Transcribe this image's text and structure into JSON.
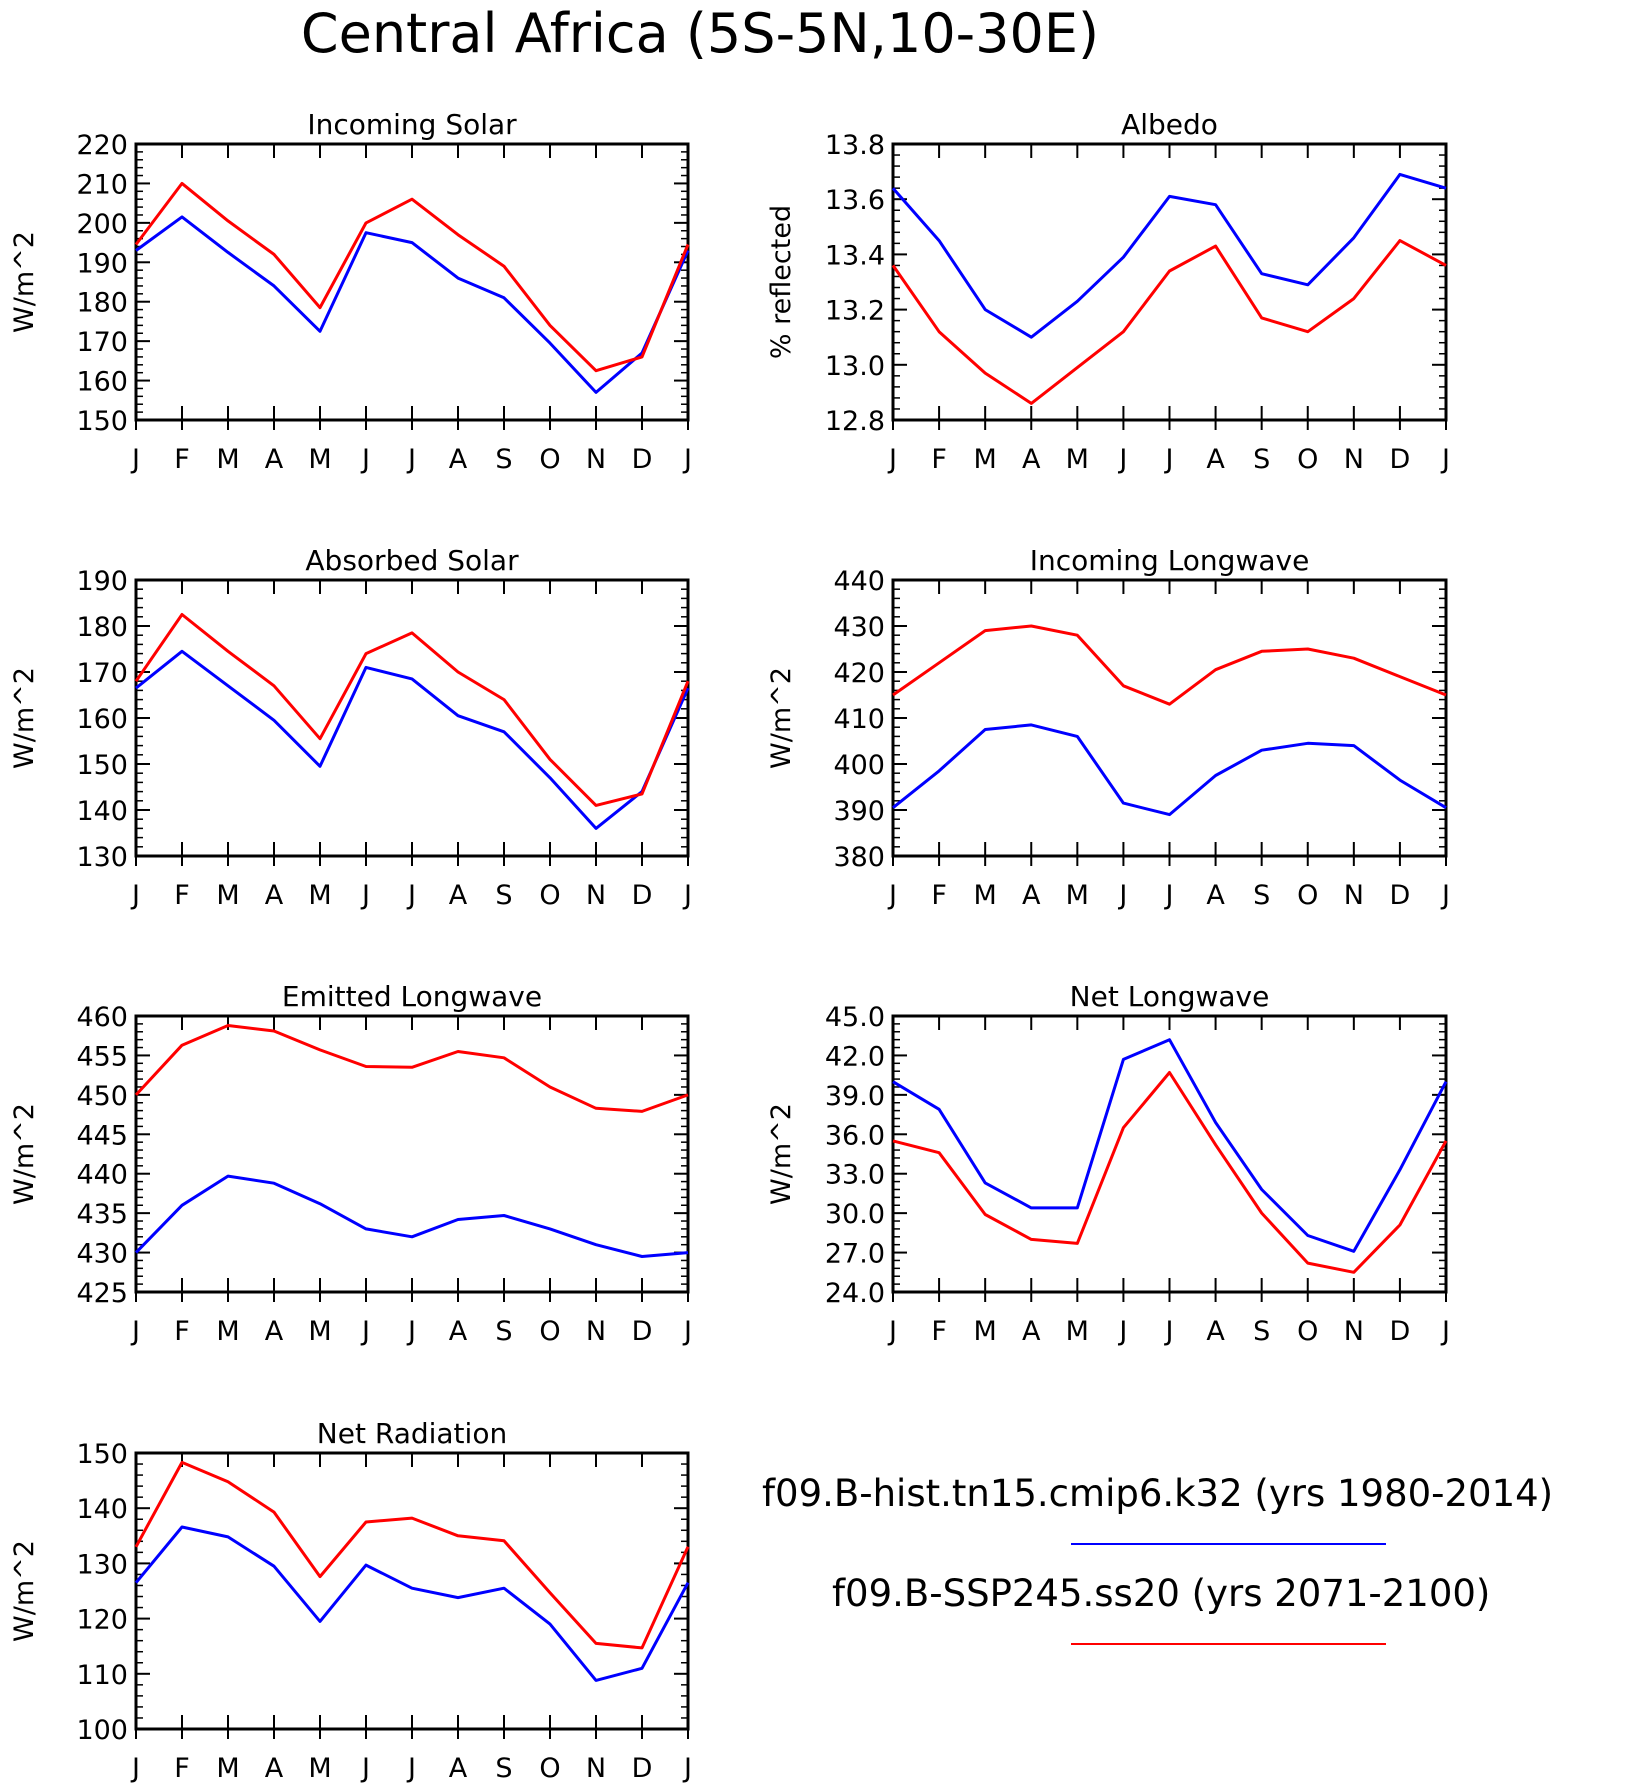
{
  "title": "Central Africa (5S-5N,10-30E)",
  "months": [
    "J",
    "F",
    "M",
    "A",
    "M",
    "J",
    "J",
    "A",
    "S",
    "O",
    "N",
    "D",
    "J"
  ],
  "legend": [
    {
      "label": "f09.B-hist.tn15.cmip6.k32 (yrs 1980-2014)",
      "color": "#0000ff"
    },
    {
      "label": "f09.B-SSP245.ss20 (yrs 2071-2100)",
      "color": "#ff0000"
    }
  ],
  "colors": {
    "hist": "#0000ff",
    "ssp": "#ff0000",
    "axis": "#000000"
  },
  "chart_data": [
    {
      "type": "line",
      "title": "Incoming Solar",
      "ylabel": "W/m^2",
      "ylim": [
        150,
        220
      ],
      "yticks": [
        150,
        160,
        170,
        180,
        190,
        200,
        210,
        220
      ],
      "ytick_labels": [
        "150",
        "160",
        "170",
        "180",
        "190",
        "200",
        "210",
        "220"
      ],
      "categories": [
        "J",
        "F",
        "M",
        "A",
        "M",
        "J",
        "J",
        "A",
        "S",
        "O",
        "N",
        "D",
        "J"
      ],
      "series": [
        {
          "name": "f09.B-hist.tn15.cmip6.k32 (yrs 1980-2014)",
          "color": "#0000ff",
          "values": [
            193,
            201.5,
            192.5,
            184,
            172.5,
            197.5,
            195,
            186,
            181,
            169.5,
            157,
            167,
            193
          ]
        },
        {
          "name": "f09.B-SSP245.ss20 (yrs 2071-2100)",
          "color": "#ff0000",
          "values": [
            194.5,
            210,
            200.5,
            192,
            178.5,
            200,
            206,
            197,
            189,
            174,
            162.5,
            166,
            194.5
          ]
        }
      ]
    },
    {
      "type": "line",
      "title": "Albedo",
      "ylabel": "% reflected",
      "ylim": [
        12.8,
        13.8
      ],
      "yticks": [
        12.8,
        13.0,
        13.2,
        13.4,
        13.6,
        13.8
      ],
      "ytick_labels": [
        "12.8",
        "13.0",
        "13.2",
        "13.4",
        "13.6",
        "13.8"
      ],
      "categories": [
        "J",
        "F",
        "M",
        "A",
        "M",
        "J",
        "J",
        "A",
        "S",
        "O",
        "N",
        "D",
        "J"
      ],
      "series": [
        {
          "name": "f09.B-hist.tn15.cmip6.k32 (yrs 1980-2014)",
          "color": "#0000ff",
          "values": [
            13.64,
            13.45,
            13.2,
            13.1,
            13.23,
            13.39,
            13.61,
            13.58,
            13.33,
            13.29,
            13.46,
            13.69,
            13.64
          ]
        },
        {
          "name": "f09.B-SSP245.ss20 (yrs 2071-2100)",
          "color": "#ff0000",
          "values": [
            13.36,
            13.12,
            12.97,
            12.86,
            12.99,
            13.12,
            13.34,
            13.43,
            13.17,
            13.12,
            13.24,
            13.45,
            13.36
          ]
        }
      ]
    },
    {
      "type": "line",
      "title": "Absorbed Solar",
      "ylabel": "W/m^2",
      "ylim": [
        130,
        190
      ],
      "yticks": [
        130,
        140,
        150,
        160,
        170,
        180,
        190
      ],
      "ytick_labels": [
        "130",
        "140",
        "150",
        "160",
        "170",
        "180",
        "190"
      ],
      "categories": [
        "J",
        "F",
        "M",
        "A",
        "M",
        "J",
        "J",
        "A",
        "S",
        "O",
        "N",
        "D",
        "J"
      ],
      "series": [
        {
          "name": "f09.B-hist.tn15.cmip6.k32 (yrs 1980-2014)",
          "color": "#0000ff",
          "values": [
            166.5,
            174.5,
            167,
            159.5,
            149.5,
            171,
            168.5,
            160.5,
            157,
            147,
            136,
            144,
            166.5
          ]
        },
        {
          "name": "f09.B-SSP245.ss20 (yrs 2071-2100)",
          "color": "#ff0000",
          "values": [
            168,
            182.5,
            174.5,
            167,
            155.5,
            174,
            178.5,
            170,
            164,
            151,
            141,
            143.5,
            168
          ]
        }
      ]
    },
    {
      "type": "line",
      "title": "Incoming Longwave",
      "ylabel": "W/m^2",
      "ylim": [
        380,
        440
      ],
      "yticks": [
        380,
        390,
        400,
        410,
        420,
        430,
        440
      ],
      "ytick_labels": [
        "380",
        "390",
        "400",
        "410",
        "420",
        "430",
        "440"
      ],
      "categories": [
        "J",
        "F",
        "M",
        "A",
        "M",
        "J",
        "J",
        "A",
        "S",
        "O",
        "N",
        "D",
        "J"
      ],
      "series": [
        {
          "name": "f09.B-hist.tn15.cmip6.k32 (yrs 1980-2014)",
          "color": "#0000ff",
          "values": [
            390.5,
            398.5,
            407.5,
            408.5,
            406,
            391.5,
            389,
            397.5,
            403,
            404.5,
            404,
            396.5,
            390.5
          ]
        },
        {
          "name": "f09.B-SSP245.ss20 (yrs 2071-2100)",
          "color": "#ff0000",
          "values": [
            415,
            422,
            429,
            430,
            428,
            417,
            413,
            420.5,
            424.5,
            425,
            423,
            419,
            415
          ]
        }
      ]
    },
    {
      "type": "line",
      "title": "Emitted Longwave",
      "ylabel": "W/m^2",
      "ylim": [
        425,
        460
      ],
      "yticks": [
        425,
        430,
        435,
        440,
        445,
        450,
        455,
        460
      ],
      "ytick_labels": [
        "425",
        "430",
        "435",
        "440",
        "445",
        "450",
        "455",
        "460"
      ],
      "categories": [
        "J",
        "F",
        "M",
        "A",
        "M",
        "J",
        "J",
        "A",
        "S",
        "O",
        "N",
        "D",
        "J"
      ],
      "series": [
        {
          "name": "f09.B-hist.tn15.cmip6.k32 (yrs 1980-2014)",
          "color": "#0000ff",
          "values": [
            430,
            436,
            439.7,
            438.8,
            436.2,
            433,
            432,
            434.2,
            434.7,
            433,
            431,
            429.5,
            430
          ]
        },
        {
          "name": "f09.B-SSP245.ss20 (yrs 2071-2100)",
          "color": "#ff0000",
          "values": [
            450,
            456.3,
            458.8,
            458.1,
            455.7,
            453.6,
            453.5,
            455.5,
            454.7,
            451,
            448.3,
            447.9,
            450
          ]
        }
      ]
    },
    {
      "type": "line",
      "title": "Net Longwave",
      "ylabel": "W/m^2",
      "ylim": [
        24,
        45
      ],
      "yticks": [
        24,
        27,
        30,
        33,
        36,
        39,
        42,
        45
      ],
      "ytick_labels": [
        "24.0",
        "27.0",
        "30.0",
        "33.0",
        "36.0",
        "39.0",
        "42.0",
        "45.0"
      ],
      "categories": [
        "J",
        "F",
        "M",
        "A",
        "M",
        "J",
        "J",
        "A",
        "S",
        "O",
        "N",
        "D",
        "J"
      ],
      "series": [
        {
          "name": "f09.B-hist.tn15.cmip6.k32 (yrs 1980-2014)",
          "color": "#0000ff",
          "values": [
            40,
            37.9,
            32.3,
            30.4,
            30.4,
            41.7,
            43.2,
            36.9,
            31.8,
            28.3,
            27.1,
            33.3,
            40
          ]
        },
        {
          "name": "f09.B-SSP245.ss20 (yrs 2071-2100)",
          "color": "#ff0000",
          "values": [
            35.5,
            34.6,
            29.9,
            28,
            27.7,
            36.5,
            40.7,
            35.2,
            30,
            26.2,
            25.5,
            29.1,
            35.5
          ]
        }
      ]
    },
    {
      "type": "line",
      "title": "Net Radiation",
      "ylabel": "W/m^2",
      "ylim": [
        100,
        150
      ],
      "yticks": [
        100,
        110,
        120,
        130,
        140,
        150
      ],
      "ytick_labels": [
        "100",
        "110",
        "120",
        "130",
        "140",
        "150"
      ],
      "categories": [
        "J",
        "F",
        "M",
        "A",
        "M",
        "J",
        "J",
        "A",
        "S",
        "O",
        "N",
        "D",
        "J"
      ],
      "series": [
        {
          "name": "f09.B-hist.tn15.cmip6.k32 (yrs 1980-2014)",
          "color": "#0000ff",
          "values": [
            126.5,
            136.6,
            134.8,
            129.5,
            119.5,
            129.7,
            125.5,
            123.8,
            125.5,
            119,
            108.8,
            111,
            126.5
          ]
        },
        {
          "name": "f09.B-SSP245.ss20 (yrs 2071-2100)",
          "color": "#ff0000",
          "values": [
            133,
            148.3,
            144.8,
            139.3,
            127.6,
            137.5,
            138.2,
            135,
            134.1,
            124.7,
            115.5,
            114.7,
            133
          ]
        }
      ]
    }
  ]
}
